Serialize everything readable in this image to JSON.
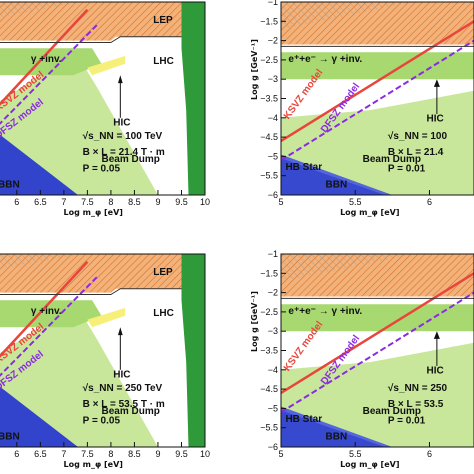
{
  "chart_data": [
    {
      "type": "area",
      "panel": "top-left",
      "xlabel": "Log m_φ [eV]",
      "ylabel": "",
      "xlim": [
        5.6,
        10.0
      ],
      "ylim": [
        -6,
        -1
      ],
      "xticks": [
        "6",
        "6.5",
        "7",
        "7.5",
        "8",
        "8.5",
        "9",
        "9.5",
        "10"
      ],
      "yticks": [],
      "regions": [
        "LEP",
        "LHC",
        "γ +inv.",
        "HIC",
        "Beam Dump",
        "BBN"
      ],
      "models": [
        "KSVZ model",
        "DFSZ model"
      ],
      "info": [
        "√s_NN = 100 TeV",
        "B × L = 21.4 T · m",
        "P = 0.05"
      ]
    },
    {
      "type": "area",
      "panel": "top-right",
      "xlabel": "Log m_φ [eV]",
      "ylabel": "Log g [GeV⁻¹]",
      "xlim": [
        5.0,
        6.3
      ],
      "ylim": [
        -6,
        -1
      ],
      "xticks": [
        "5",
        "5.5",
        "6"
      ],
      "yticks": [
        "−1",
        "−1.5",
        "−2",
        "−2.5",
        "−3",
        "−3.5",
        "−4",
        "−4.5",
        "−5",
        "−5.5",
        "−6"
      ],
      "regions": [
        "e⁺+e⁻ → γ +inv.",
        "HIC",
        "Beam Dump",
        "HB Star",
        "BBN"
      ],
      "models": [
        "KSVZ model",
        "DFSZ model"
      ],
      "info": [
        "√s_NN = 100",
        "B × L = 21.4",
        "P = 0.01"
      ]
    },
    {
      "type": "area",
      "panel": "bottom-left",
      "xlabel": "Log m_φ [eV]",
      "ylabel": "",
      "xlim": [
        5.6,
        10.0
      ],
      "ylim": [
        -6,
        -1
      ],
      "xticks": [
        "6",
        "6.5",
        "7",
        "7.5",
        "8",
        "8.5",
        "9",
        "9.5",
        "10"
      ],
      "yticks": [],
      "regions": [
        "LEP",
        "LHC",
        "γ +inv.",
        "HIC",
        "Beam Dump",
        "BBN"
      ],
      "models": [
        "KSVZ model",
        "DFSZ model"
      ],
      "info": [
        "√s_NN = 250 TeV",
        "B × L = 53.5 T · m",
        "P = 0.05"
      ]
    },
    {
      "type": "area",
      "panel": "bottom-right",
      "xlabel": "Log m_φ [eV]",
      "ylabel": "Log g [GeV⁻¹]",
      "xlim": [
        5.0,
        6.3
      ],
      "ylim": [
        -6,
        -1
      ],
      "xticks": [
        "5",
        "5.5",
        "6"
      ],
      "yticks": [
        "−1",
        "−1.5",
        "−2",
        "−2.5",
        "−3",
        "−3.5",
        "−4",
        "−4.5",
        "−5",
        "−5.5",
        "−6"
      ],
      "regions": [
        "e⁺+e⁻ → γ +inv.",
        "HIC",
        "Beam Dump",
        "HB Star",
        "BBN"
      ],
      "models": [
        "KSVZ model",
        "DFSZ model"
      ],
      "info": [
        "√s_NN = 250",
        "B × L = 53.5",
        "P = 0.01"
      ]
    }
  ],
  "colors": {
    "lep": "#f0a05a",
    "lhc": "#2e9a3a",
    "beam_dump": "#c9e79a",
    "bbn": "#3344cc",
    "hb_star": "#5566dd",
    "gamma_inv": "#a8d870",
    "yellow": "#f6f07a",
    "ksvz": "#e8453c",
    "dfsz": "#8a2be2"
  }
}
